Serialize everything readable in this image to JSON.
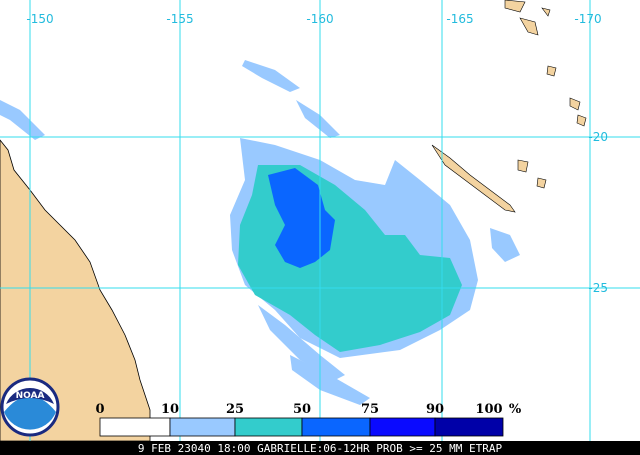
{
  "map": {
    "lon_labels": [
      "-150",
      "-155",
      "-160",
      "-165",
      "-170"
    ],
    "lat_labels": [
      "-20",
      "-25"
    ],
    "logo": "NOAA",
    "legend": {
      "labels": [
        "0",
        "10",
        "25",
        "50",
        "75",
        "90",
        "100"
      ],
      "unit": "%",
      "colors": [
        "#ffffff",
        "#99c9ff",
        "#33cccc",
        "#0a66ff",
        "#0a0aff",
        "#0000a8"
      ]
    },
    "caption": "9 FEB 23040 18:00 GABRIELLE:06-12HR PROB >= 25 MM ETRAP"
  }
}
